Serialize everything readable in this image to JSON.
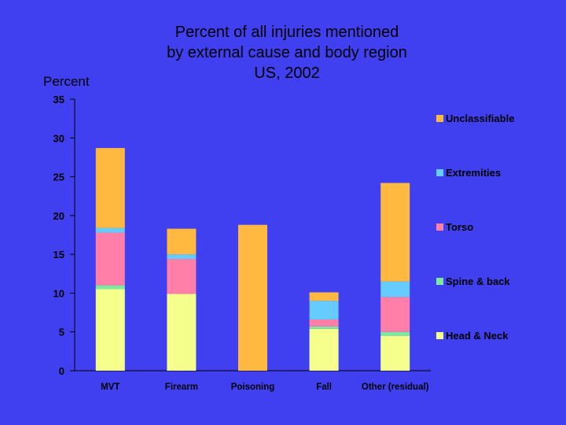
{
  "chart_data": {
    "type": "bar",
    "stacked": true,
    "title": [
      "Percent of all injuries mentioned",
      "by external cause and body region",
      "US, 2002"
    ],
    "ylabel": "Percent",
    "xlabel": "",
    "ylim": [
      0,
      35
    ],
    "yticks": [
      0,
      5,
      10,
      15,
      20,
      25,
      30,
      35
    ],
    "grid": false,
    "legend_position": "right",
    "categories": [
      "MVT",
      "Firearm",
      "Poisoning",
      "Fall",
      "Other (residual)"
    ],
    "series": [
      {
        "name": "Head & Neck",
        "color": "#f5ff8c",
        "values": [
          10.5,
          9.9,
          0,
          5.4,
          4.5
        ]
      },
      {
        "name": "Spine & back",
        "color": "#7fe8a0",
        "values": [
          0.5,
          0,
          0,
          0.3,
          0.5
        ]
      },
      {
        "name": "Torso",
        "color": "#ff7fa8",
        "values": [
          6.8,
          4.5,
          0,
          0.9,
          4.5
        ]
      },
      {
        "name": "Extremities",
        "color": "#66ccff",
        "values": [
          0.6,
          0.6,
          0,
          2.4,
          2.0
        ]
      },
      {
        "name": "Unclassifiable",
        "color": "#ffb840",
        "values": [
          10.3,
          3.3,
          18.8,
          1.1,
          12.7
        ]
      }
    ]
  }
}
